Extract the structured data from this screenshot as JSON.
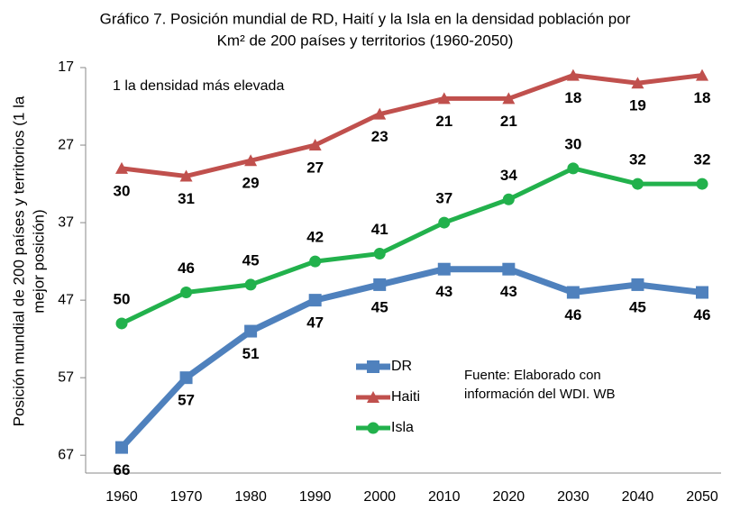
{
  "chart_data": {
    "type": "line",
    "title": [
      "Gráfico 7. Posición mundial de RD, Haití y la Isla en la densidad población por",
      "Km² de 200 países y territorios (1960-2050)"
    ],
    "y_label": [
      "Posición mundial de 200 países y territorios (1 la",
      "mejor posición)"
    ],
    "annotations": [
      "1 la densidad más elevada"
    ],
    "source": [
      "Fuente: Elaborado con",
      "información del WDI. WB"
    ],
    "categories": [
      "1960",
      "1970",
      "1980",
      "1990",
      "2000",
      "2010",
      "2020",
      "2030",
      "2040",
      "2050"
    ],
    "series": [
      {
        "name": "DR",
        "color": "#4f81bd",
        "label_color": "#1f6fb8",
        "marker": "square",
        "label_position": "below",
        "values": [
          66,
          57,
          51,
          47,
          45,
          43,
          43,
          46,
          45,
          46
        ]
      },
      {
        "name": "Haiti",
        "color": "#c0504d",
        "label_color": "#e82020",
        "marker": "triangle",
        "label_position": "below",
        "values": [
          30,
          31,
          29,
          27,
          23,
          21,
          21,
          18,
          19,
          18
        ]
      },
      {
        "name": "Isla",
        "color": "#22b14c",
        "label_color": "#2ea84a",
        "marker": "circle",
        "label_position": "above",
        "values": [
          50,
          46,
          45,
          42,
          41,
          37,
          34,
          30,
          32,
          32
        ]
      }
    ],
    "ylim": [
      17,
      69.3
    ],
    "y_reversed": true,
    "yticks": [
      17,
      27,
      37,
      47,
      57,
      67
    ],
    "grid": false
  }
}
